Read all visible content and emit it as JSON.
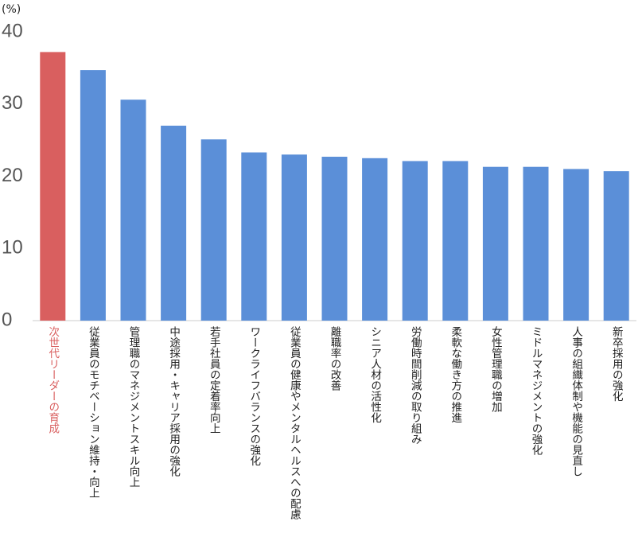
{
  "chart_data": {
    "type": "bar",
    "unit_label": "(%)",
    "categories": [
      "次世代リーダーの育成",
      "従業員のモチベーション維持・向上",
      "管理職のマネジメントスキル向上",
      "中途採用・キャリア採用の強化",
      "若手社員の定着率向上",
      "ワークライフバランスの強化",
      "従業員の健康やメンタルヘルスへの配慮",
      "離職率の改善",
      "シニア人材の活性化",
      "労働時間削減の取り組み",
      "柔軟な働き方の推進",
      "女性管理職の増加",
      "ミドルマネジメントの強化",
      "人事の組織体制や機能の見直し",
      "新卒採用の強化"
    ],
    "values": [
      37.2,
      34.7,
      30.6,
      27.0,
      25.1,
      23.3,
      23.0,
      22.7,
      22.5,
      22.1,
      22.1,
      21.3,
      21.3,
      21.0,
      20.7
    ],
    "colors": [
      "#d95f5f",
      "#5b8fd8",
      "#5b8fd8",
      "#5b8fd8",
      "#5b8fd8",
      "#5b8fd8",
      "#5b8fd8",
      "#5b8fd8",
      "#5b8fd8",
      "#5b8fd8",
      "#5b8fd8",
      "#5b8fd8",
      "#5b8fd8",
      "#5b8fd8",
      "#5b8fd8"
    ],
    "ylim": [
      0,
      40
    ],
    "yticks": [
      0,
      10,
      20,
      30,
      40
    ],
    "grid": false
  }
}
